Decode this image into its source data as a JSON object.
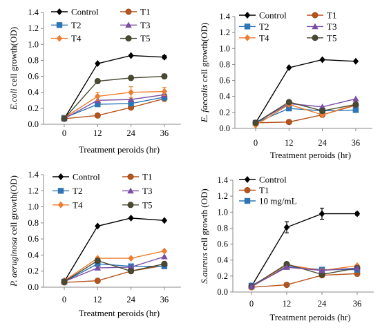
{
  "colors": {
    "Control": "#000000",
    "T1": "#b5541c",
    "T2": "#2e75b6",
    "T3": "#7a4ea3",
    "T4": "#ed7d31",
    "T5": "#4a4a33",
    "10 mg/mL": "#2e75b6"
  },
  "markers": {
    "Control": "diamond",
    "T1": "circle",
    "T2": "square",
    "T3": "triangle",
    "T4": "diamond",
    "T5": "circle",
    "10 mg/mL": "square"
  },
  "chart_data": [
    {
      "type": "line",
      "xlabel": "Treatment peroids (hr)",
      "ylabel_italic": "E.coli",
      "ylabel_rest": " cell growth(OD)",
      "x": [
        "0",
        "12",
        "24",
        "36"
      ],
      "ylim": [
        0,
        1.4
      ],
      "yticks": [
        "0.0",
        "0.2",
        "0.4",
        "0.6",
        "0.8",
        "1.0",
        "1.2",
        "1.4"
      ],
      "grid": false,
      "legend": [
        "Control",
        "T1",
        "T2",
        "T3",
        "T4",
        "T5"
      ],
      "series": [
        {
          "name": "Control",
          "values": [
            0.07,
            0.76,
            0.86,
            0.84
          ],
          "err": [
            0,
            0,
            0,
            0.02
          ]
        },
        {
          "name": "T1",
          "values": [
            0.07,
            0.11,
            0.21,
            0.32
          ],
          "err": [
            0,
            0,
            0.02,
            0.03
          ]
        },
        {
          "name": "T2",
          "values": [
            0.08,
            0.25,
            0.26,
            0.34
          ],
          "err": [
            0,
            0,
            0.03,
            0.04
          ]
        },
        {
          "name": "T3",
          "values": [
            0.07,
            0.3,
            0.31,
            0.37
          ],
          "err": [
            0,
            0,
            0,
            0
          ]
        },
        {
          "name": "T4",
          "values": [
            0.08,
            0.35,
            0.4,
            0.41
          ],
          "err": [
            0,
            0.05,
            0.07,
            0.05
          ]
        },
        {
          "name": "T5",
          "values": [
            0.07,
            0.54,
            0.58,
            0.6
          ],
          "err": [
            0,
            0,
            0,
            0.03
          ]
        }
      ]
    },
    {
      "type": "line",
      "xlabel": "Treatment peroids (hr)",
      "ylabel_italic": "E. faecalis",
      "ylabel_rest": " cell growth(OD)",
      "x": [
        "0",
        "12",
        "24",
        "36"
      ],
      "ylim": [
        0,
        1.4
      ],
      "yticks": [
        "0.0",
        "0.2",
        "0.4",
        "0.6",
        "0.8",
        "1.0",
        "1.2",
        "1.4"
      ],
      "grid": false,
      "legend": [
        "Control",
        "T1",
        "T2",
        "T3",
        "T4",
        "T5"
      ],
      "series": [
        {
          "name": "Control",
          "values": [
            0.07,
            0.76,
            0.86,
            0.84
          ],
          "err": [
            0,
            0,
            0,
            0
          ]
        },
        {
          "name": "T1",
          "values": [
            0.07,
            0.08,
            0.17,
            0.29
          ],
          "err": [
            0,
            0,
            0,
            0
          ]
        },
        {
          "name": "T2",
          "values": [
            0.07,
            0.25,
            0.22,
            0.23
          ],
          "err": [
            0,
            0,
            0,
            0
          ]
        },
        {
          "name": "T3",
          "values": [
            0.07,
            0.31,
            0.27,
            0.37
          ],
          "err": [
            0,
            0,
            0,
            0
          ]
        },
        {
          "name": "T4",
          "values": [
            0.04,
            0.3,
            0.17,
            0.3
          ],
          "err": [
            0,
            0,
            0,
            0
          ]
        },
        {
          "name": "T5",
          "values": [
            0.07,
            0.33,
            0.22,
            0.3
          ],
          "err": [
            0,
            0,
            0,
            0
          ]
        }
      ]
    },
    {
      "type": "line",
      "xlabel": "Treatment peroids (hr)",
      "ylabel_italic": "P. aeruginosa",
      "ylabel_rest": " cell growth(OD)",
      "x": [
        "0",
        "12",
        "24",
        "36"
      ],
      "ylim": [
        0,
        1.4
      ],
      "yticks": [
        "0.0",
        "0.2",
        "0.4",
        "0.6",
        "0.8",
        "1.0",
        "1.2",
        "1.4"
      ],
      "grid": false,
      "legend": [
        "Control",
        "T1",
        "T2",
        "T3",
        "T4",
        "T5"
      ],
      "series": [
        {
          "name": "Control",
          "values": [
            0.07,
            0.76,
            0.86,
            0.83
          ],
          "err": [
            0,
            0,
            0,
            0
          ]
        },
        {
          "name": "T1",
          "values": [
            0.06,
            0.08,
            0.2,
            0.27
          ],
          "err": [
            0,
            0,
            0,
            0
          ]
        },
        {
          "name": "T2",
          "values": [
            0.07,
            0.29,
            0.26,
            0.26
          ],
          "err": [
            0,
            0,
            0,
            0
          ]
        },
        {
          "name": "T3",
          "values": [
            0.07,
            0.24,
            0.25,
            0.38
          ],
          "err": [
            0,
            0,
            0,
            0
          ]
        },
        {
          "name": "T4",
          "values": [
            0.08,
            0.36,
            0.36,
            0.45
          ],
          "err": [
            0,
            0,
            0,
            0
          ]
        },
        {
          "name": "T5",
          "values": [
            0.07,
            0.33,
            0.2,
            0.29
          ],
          "err": [
            0,
            0,
            0,
            0
          ]
        }
      ]
    },
    {
      "type": "line",
      "xlabel": "Treatment peroids (hr)",
      "ylabel_italic": "S.aureus",
      "ylabel_rest": " cell growth (OD)",
      "x": [
        "0",
        "12",
        "24",
        "36"
      ],
      "ylim": [
        0,
        1.4
      ],
      "yticks": [
        "0.0",
        "0.2",
        "0.4",
        "0.6",
        "0.8",
        "1.0",
        "1.2",
        "1.4"
      ],
      "grid": false,
      "legend": [
        "Control",
        "T1",
        "10 mg/mL"
      ],
      "series": [
        {
          "name": "Control",
          "values": [
            0.07,
            0.81,
            0.98,
            0.98
          ],
          "err": [
            0,
            0.07,
            0.07,
            0.02
          ]
        },
        {
          "name": "T1",
          "values": [
            0.06,
            0.09,
            0.21,
            0.23
          ],
          "err": [
            0,
            0,
            0,
            0.03
          ]
        },
        {
          "name": "10 mg/mL",
          "values": [
            0.08,
            0.32,
            0.28,
            0.28
          ],
          "err": [
            0,
            0,
            0,
            0
          ]
        },
        {
          "name": "",
          "values": [
            0.06,
            0.34,
            0.27,
            0.33
          ],
          "err": [
            0,
            0,
            0,
            0
          ],
          "marker": "diamond",
          "color": "#ed7d31"
        },
        {
          "name": "",
          "values": [
            0.07,
            0.35,
            0.22,
            0.3
          ],
          "err": [
            0,
            0,
            0,
            0
          ],
          "marker": "circle",
          "color": "#4a4a33"
        },
        {
          "name": "",
          "values": [
            0.07,
            0.31,
            0.27,
            0.3
          ],
          "err": [
            0,
            0,
            0,
            0
          ],
          "marker": "triangle",
          "color": "#7a4ea3"
        }
      ]
    }
  ]
}
